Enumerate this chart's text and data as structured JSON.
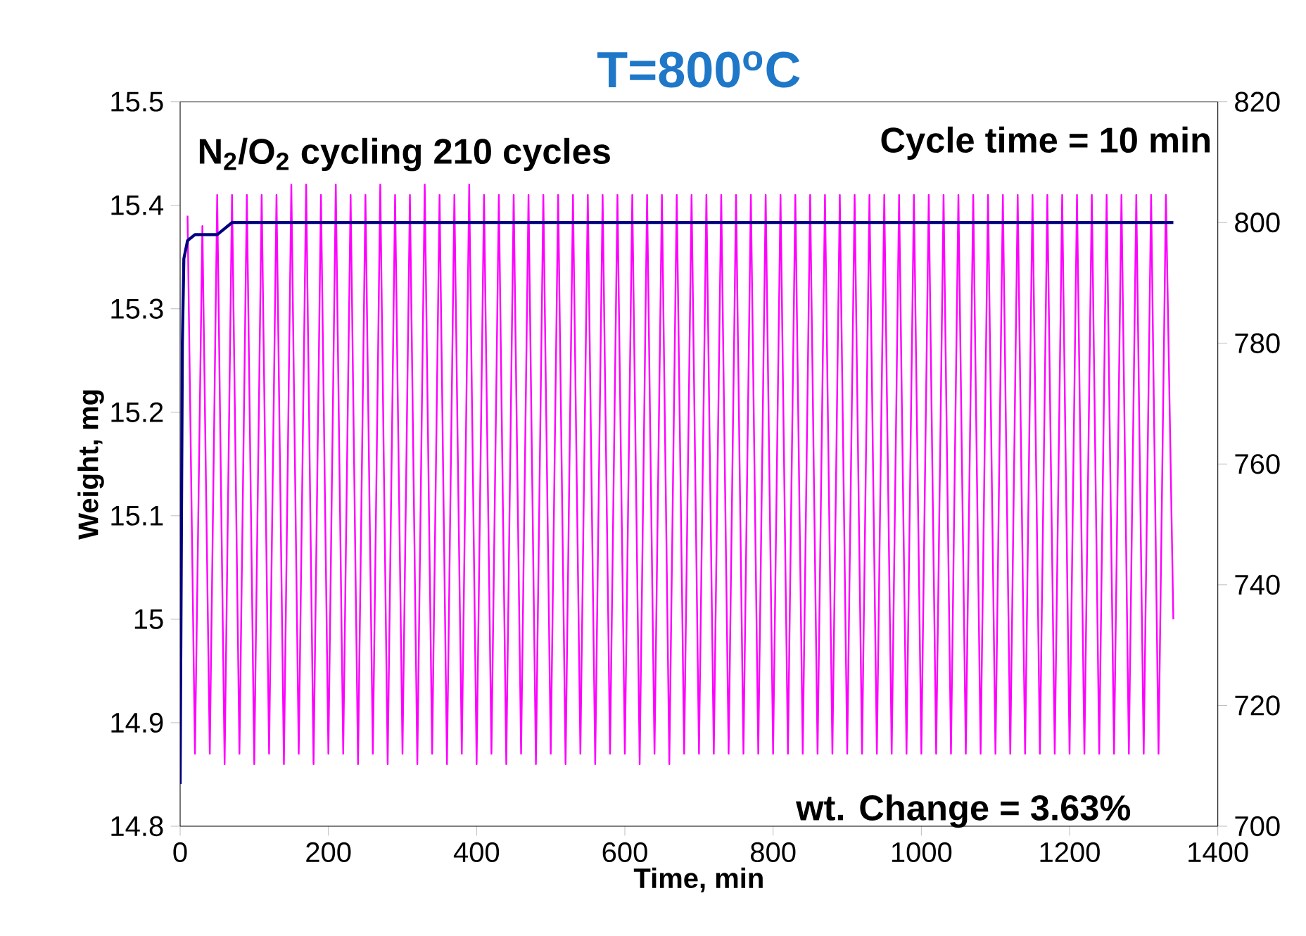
{
  "chart_data": {
    "type": "line",
    "title": "T=800$^{o}$C",
    "xlabel": "Time, min",
    "ylabel": "Weight, mg",
    "xlim": [
      0,
      1400
    ],
    "xticks": [
      0,
      200,
      400,
      600,
      800,
      1000,
      1200,
      1400
    ],
    "ylim": [
      14.8,
      15.5
    ],
    "yticks": [
      14.8,
      14.9,
      15,
      15.1,
      15.2,
      15.3,
      15.4,
      15.5
    ],
    "y2lim": [
      700,
      820
    ],
    "y2ticks": [
      700,
      720,
      740,
      760,
      780,
      800,
      820
    ],
    "annotations": [
      "N$_{2}$/O$_{2}$ cycling 210 cycles",
      "Cycle time = 10 min",
      "wt. Change = 3.63%"
    ],
    "series": [
      {
        "color": "#ff00ff",
        "x": [
          10,
          20,
          30,
          40,
          50,
          60,
          70,
          80,
          90,
          100,
          110,
          120,
          130,
          140,
          150,
          160,
          170,
          180,
          190,
          200,
          210,
          220,
          230,
          240,
          250,
          260,
          270,
          280,
          290,
          300,
          310,
          320,
          330,
          340,
          350,
          360,
          370,
          380,
          390,
          400,
          410,
          420,
          430,
          440,
          450,
          460,
          470,
          480,
          490,
          500,
          510,
          520,
          530,
          540,
          550,
          560,
          570,
          580,
          590,
          600,
          610,
          620,
          630,
          640,
          650,
          660,
          670,
          680,
          690,
          700,
          710,
          720,
          730,
          740,
          750,
          760,
          770,
          780,
          790,
          800,
          810,
          820,
          830,
          840,
          850,
          860,
          870,
          880,
          890,
          900,
          910,
          920,
          930,
          940,
          950,
          960,
          970,
          980,
          990,
          1000,
          1010,
          1020,
          1030,
          1040,
          1050,
          1060,
          1070,
          1080,
          1090,
          1100,
          1110,
          1120,
          1130,
          1140,
          1150,
          1160,
          1170,
          1180,
          1190,
          1200,
          1210,
          1220,
          1230,
          1240,
          1250,
          1260,
          1270,
          1280,
          1290,
          1300,
          1310,
          1320,
          1330,
          1340
        ],
        "values": [
          15.39,
          14.87,
          15.38,
          14.87,
          15.41,
          14.86,
          15.41,
          14.87,
          15.41,
          14.86,
          15.41,
          14.87,
          15.41,
          14.86,
          15.42,
          14.87,
          15.42,
          14.86,
          15.41,
          14.87,
          15.42,
          14.87,
          15.41,
          14.86,
          15.41,
          14.87,
          15.42,
          14.86,
          15.41,
          14.87,
          15.41,
          14.86,
          15.42,
          14.87,
          15.41,
          14.86,
          15.41,
          14.87,
          15.42,
          14.86,
          15.41,
          14.87,
          15.41,
          14.86,
          15.41,
          14.87,
          15.41,
          14.86,
          15.41,
          14.87,
          15.41,
          14.86,
          15.41,
          14.87,
          15.41,
          14.86,
          15.41,
          14.87,
          15.41,
          14.87,
          15.41,
          14.86,
          15.41,
          14.87,
          15.41,
          14.86,
          15.41,
          14.87,
          15.41,
          14.87,
          15.41,
          14.87,
          15.41,
          14.87,
          15.41,
          14.87,
          15.41,
          14.87,
          15.41,
          14.87,
          15.41,
          14.87,
          15.41,
          14.87,
          15.41,
          14.87,
          15.41,
          14.87,
          15.41,
          14.87,
          15.41,
          14.87,
          15.41,
          14.87,
          15.41,
          14.87,
          15.41,
          14.87,
          15.41,
          14.87,
          15.41,
          14.87,
          15.41,
          14.87,
          15.41,
          14.87,
          15.41,
          14.87,
          15.41,
          14.87,
          15.41,
          14.87,
          15.41,
          14.87,
          15.41,
          14.87,
          15.41,
          14.87,
          15.41,
          14.87,
          15.41,
          14.87,
          15.41,
          14.87,
          15.41,
          14.87,
          15.41,
          14.87,
          15.41,
          14.87,
          15.41,
          14.87,
          15.41,
          15.0
        ]
      },
      {
        "color": "#000080",
        "axis": "y2",
        "x": [
          0,
          3,
          5,
          10,
          20,
          40,
          50,
          60,
          70,
          100,
          200,
          300,
          400,
          500,
          600,
          700,
          800,
          900,
          1000,
          1100,
          1200,
          1300,
          1340
        ],
        "values": [
          707,
          780,
          794,
          797,
          798,
          798,
          798,
          799,
          800,
          800,
          800,
          800,
          800,
          800,
          800,
          800,
          800,
          800,
          800,
          800,
          800,
          800,
          800
        ]
      }
    ]
  }
}
